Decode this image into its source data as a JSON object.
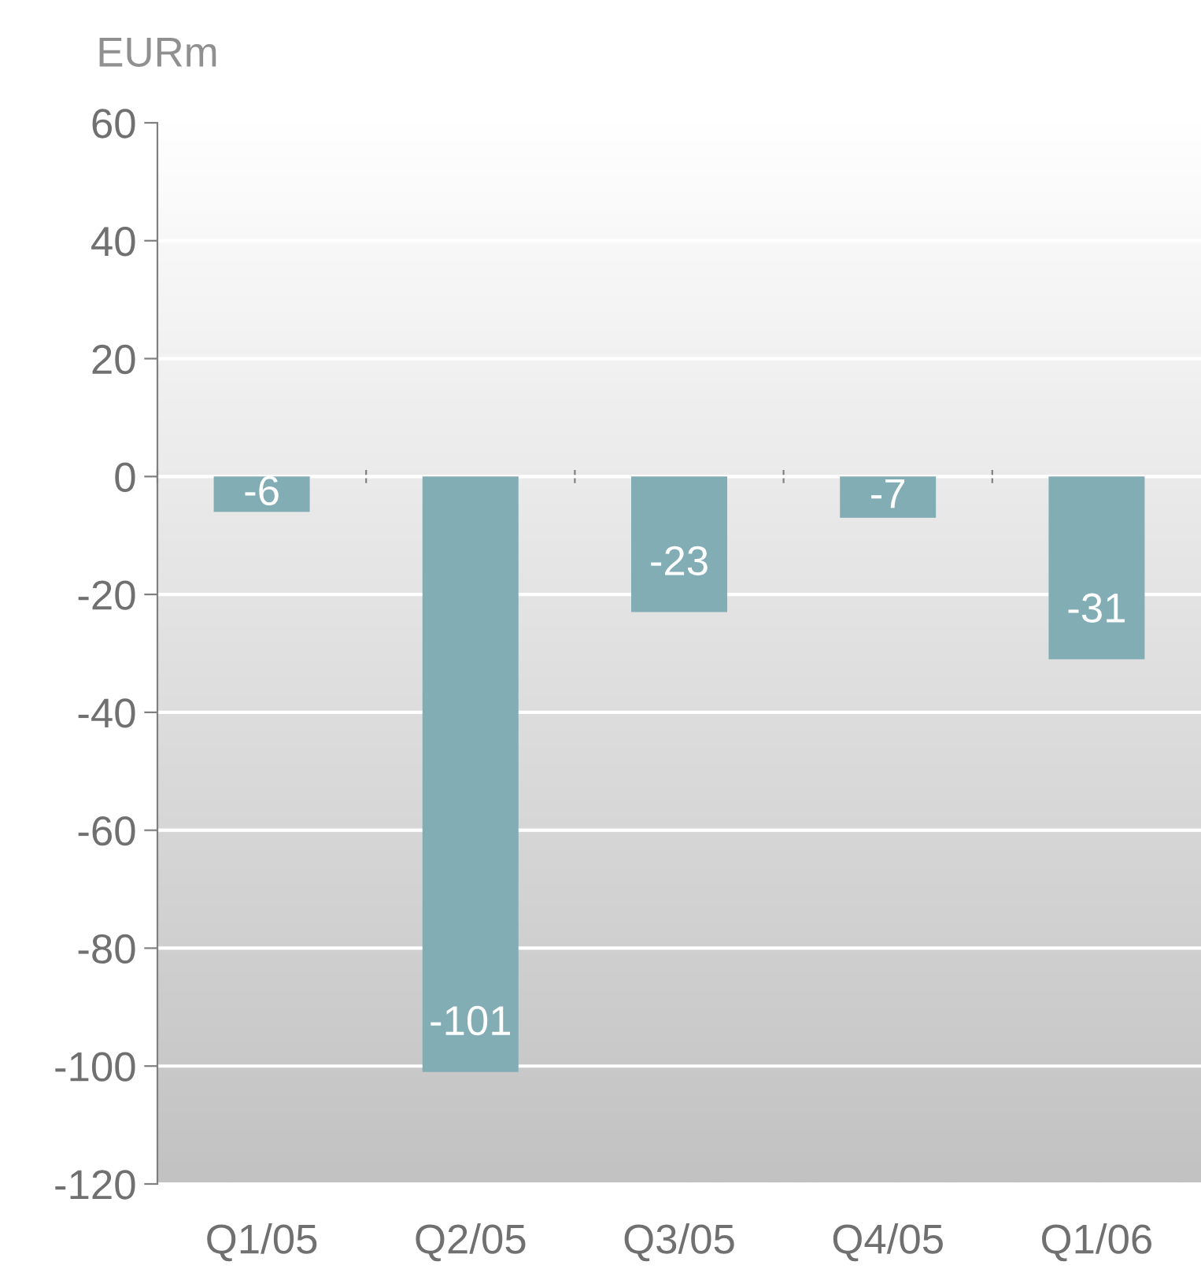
{
  "chart_data": {
    "type": "bar",
    "ylabel": "EURm",
    "categories": [
      "Q1/05",
      "Q2/05",
      "Q3/05",
      "Q4/05",
      "Q1/06"
    ],
    "values": [
      -6,
      -101,
      -23,
      -7,
      -31
    ],
    "color": "#82adb5",
    "ylim": [
      -120,
      60
    ],
    "yticks": [
      -120,
      -100,
      -80,
      -60,
      -40,
      -20,
      0,
      20,
      40,
      60
    ],
    "grid": "y",
    "data_labels": true,
    "legend": false
  }
}
